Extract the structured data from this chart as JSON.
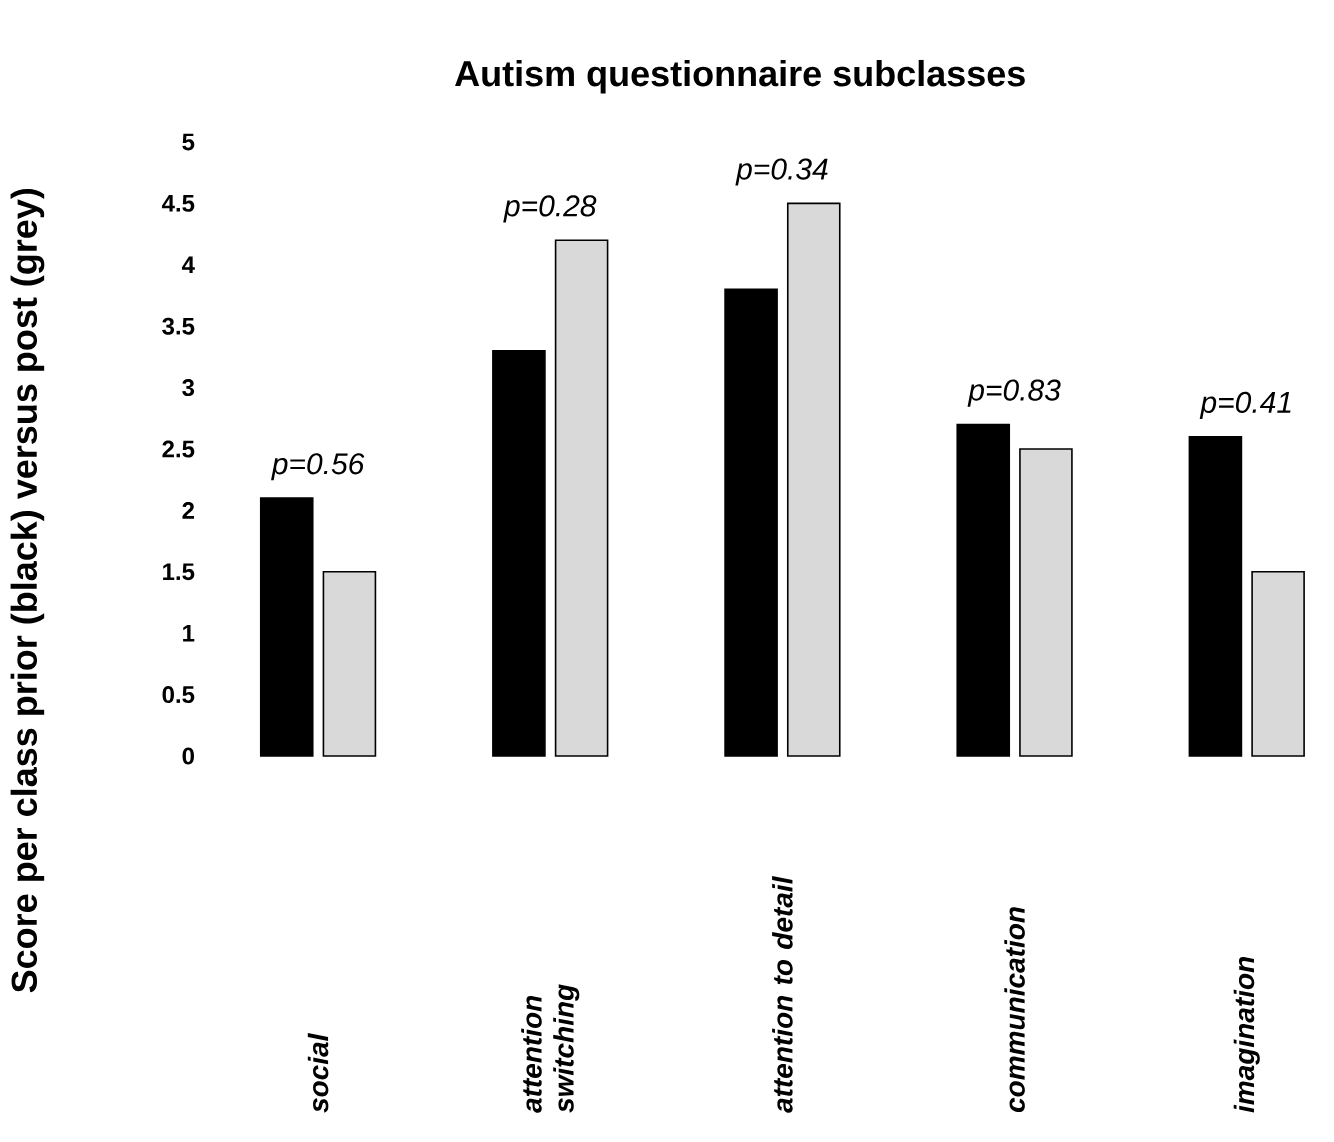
{
  "chart_data": {
    "type": "bar",
    "title": "Autism questionnaire subclasses",
    "ylabel": "Score per class prior (black) versus post (grey)",
    "categories": [
      "social",
      "attention switching",
      "attention to detail",
      "communication",
      "imagination"
    ],
    "series": [
      {
        "color": "#000000",
        "values": [
          2.1,
          3.3,
          3.8,
          2.7,
          2.6
        ]
      },
      {
        "color": "#d9d9d9",
        "values": [
          1.5,
          4.2,
          4.5,
          2.5,
          1.5
        ]
      }
    ],
    "ylim": [
      0,
      5
    ],
    "yticks": [
      0,
      0.5,
      1,
      1.5,
      2,
      2.5,
      3,
      3.5,
      4,
      4.5,
      5
    ],
    "grid": false,
    "annotations": [
      "p=0.56",
      "p=0.28",
      "p=0.34",
      "p=0.83",
      "p=0.41"
    ]
  }
}
